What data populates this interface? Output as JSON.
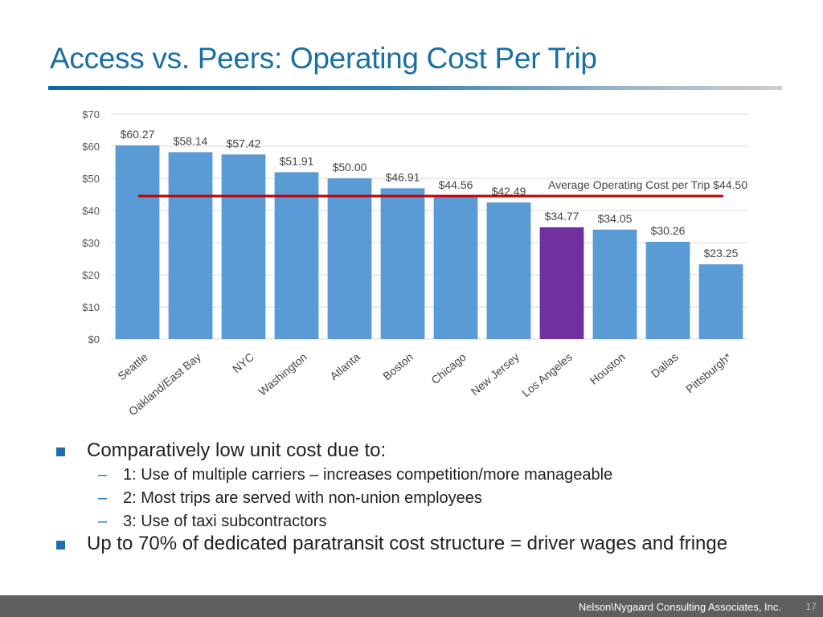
{
  "slide": {
    "title": "Access vs. Peers: Operating Cost Per Trip",
    "footer_text": "Nelson\\Nygaard Consulting Associates, Inc.",
    "page_number": "17"
  },
  "bullets": [
    {
      "text": "Comparatively low unit cost due to:",
      "sub": [
        "1: Use of multiple carriers – increases competition/more manageable",
        "2: Most trips are served with non-union employees",
        "3: Use of taxi subcontractors"
      ]
    },
    {
      "text": "Up to 70% of dedicated paratransit cost structure = driver wages and fringe",
      "sub": []
    }
  ],
  "chart_data": {
    "type": "bar",
    "title": "",
    "xlabel": "",
    "ylabel": "",
    "ylim": [
      0,
      70
    ],
    "y_ticks": [
      "$0",
      "$10",
      "$20",
      "$30",
      "$40",
      "$50",
      "$60",
      "$70"
    ],
    "categories": [
      "Seattle",
      "Oakland/East Bay",
      "NYC",
      "Washington",
      "Atlanta",
      "Boston",
      "Chicago",
      "New Jersey",
      "Los Angeles",
      "Houston",
      "Dallas",
      "Pittsburgh*"
    ],
    "values": [
      60.27,
      58.14,
      57.42,
      51.91,
      50.0,
      46.91,
      44.56,
      42.49,
      34.77,
      34.05,
      30.26,
      23.25
    ],
    "value_labels": [
      "$60.27",
      "$58.14",
      "$57.42",
      "$51.91",
      "$50.00",
      "$46.91",
      "$44.56",
      "$42.49",
      "$34.77",
      "$34.05",
      "$30.26",
      "$23.25"
    ],
    "highlight": "Los Angeles",
    "average": {
      "value": 44.5,
      "label": "Average Operating Cost per Trip $44.50"
    },
    "colors": {
      "bar": "#5b9bd5",
      "highlight": "#7030a0",
      "average_line": "#c00000",
      "grid": "#d9d9d9"
    },
    "grid": true,
    "legend": "none"
  }
}
